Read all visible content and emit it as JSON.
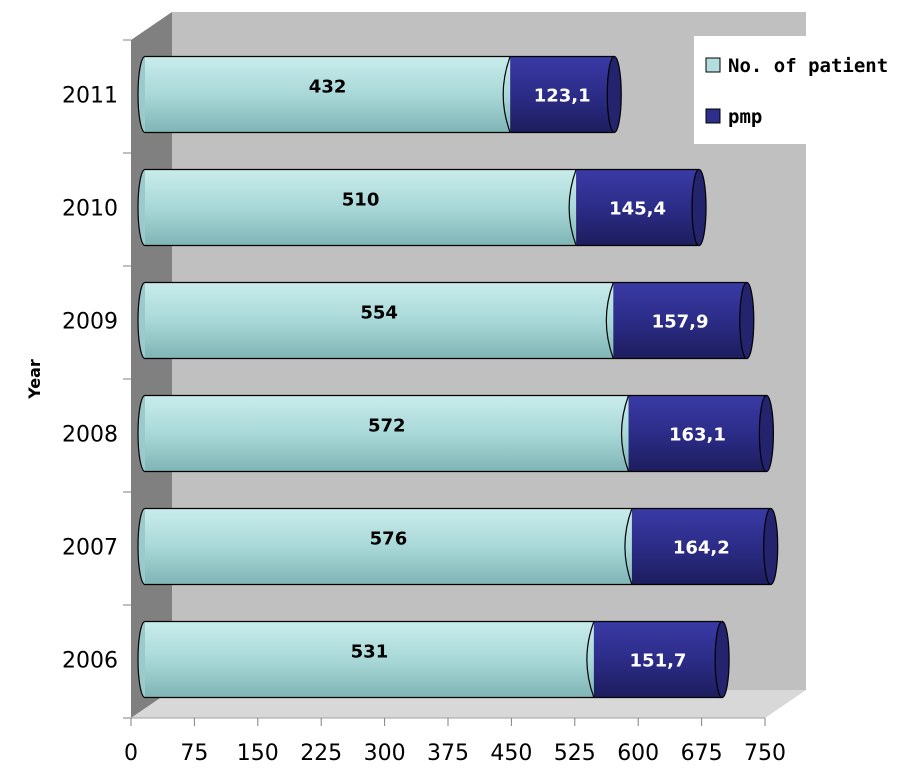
{
  "chart_data": {
    "type": "bar",
    "orientation": "horizontal",
    "stacked": true,
    "categories": [
      "2006",
      "2007",
      "2008",
      "2009",
      "2010",
      "2011"
    ],
    "series": [
      {
        "name": "No. of patient",
        "values": [
          531,
          576,
          572,
          554,
          510,
          432
        ],
        "labels": [
          "531",
          "576",
          "572",
          "554",
          "510",
          "432"
        ],
        "color": "#b4dede"
      },
      {
        "name": "pmp",
        "values": [
          151.7,
          164.2,
          163.1,
          157.9,
          145.4,
          123.1
        ],
        "labels": [
          "151,7",
          "164,2",
          "163,1",
          "157,9",
          "145,4",
          "123,1"
        ],
        "color": "#2e2e8c"
      }
    ],
    "xlim": [
      0,
      750
    ],
    "xticks": [
      "0",
      "75",
      "150",
      "225",
      "300",
      "375",
      "450",
      "525",
      "600",
      "675",
      "750"
    ],
    "ylabel": "Year",
    "xlabel": "",
    "legend": "top-right",
    "grid": false
  }
}
